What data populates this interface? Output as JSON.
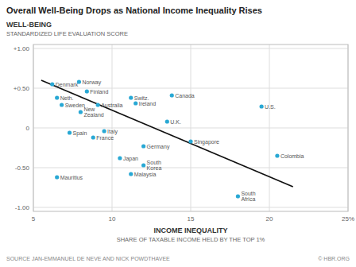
{
  "chart_data": {
    "type": "scatter",
    "title": "Overall Well-Being Drops as National Income Inequality Rises",
    "ylabel": "WELL-BEING",
    "ylabel_note": "STANDARDIZED LIFE EVALUATION SCORE",
    "xlabel": "INCOME INEQUALITY",
    "xlabel_note": "SHARE OF TAXABLE INCOME HELD BY THE TOP 1%",
    "source": "SOURCE  JAN-EMMANUEL DE NEVE AND NICK POWDTHAVEE",
    "credit": "© HBR.ORG",
    "xlim": [
      5,
      25
    ],
    "ylim": [
      -1.05,
      1.05
    ],
    "xticks": [
      5,
      10,
      15,
      20,
      {
        "value": 25,
        "label": "25%"
      }
    ],
    "yticks": [
      {
        "value": 1.0,
        "label": "+1.00"
      },
      {
        "value": 0.5,
        "label": "+0.50"
      },
      0,
      {
        "value": -0.5,
        "label": "-0.50"
      },
      {
        "value": -1.0,
        "label": "-1.00"
      }
    ],
    "grid": true,
    "series": [
      {
        "type": "scatter",
        "color": "#29a8d4",
        "x": [
          6.2,
          7.9,
          8.4,
          6.5,
          6.8,
          8.0,
          9.1,
          11.2,
          11.5,
          13.8,
          19.5,
          13.5,
          7.3,
          9.5,
          8.8,
          12.0,
          15.0,
          10.5,
          12.0,
          11.2,
          6.5,
          20.5,
          18.0
        ],
        "values": [
          0.55,
          0.58,
          0.46,
          0.38,
          0.29,
          0.2,
          0.29,
          0.38,
          0.31,
          0.41,
          0.27,
          0.08,
          -0.06,
          -0.04,
          -0.12,
          -0.23,
          -0.17,
          -0.38,
          -0.47,
          -0.58,
          -0.62,
          -0.35,
          -0.86
        ],
        "labels": [
          "Denmark",
          "Norway",
          "Finland",
          "Neth.",
          "Sweden",
          "New\nZealand",
          "Australia",
          "Switz.",
          "Ireland",
          "Canada",
          "U.S.",
          "U.K.",
          "Spain",
          "Italy",
          "France",
          "Germany",
          "Singapore",
          "Japan",
          "South\nKorea",
          "Malaysia",
          "Mauritius",
          "Colombia",
          "South\nAfrica"
        ]
      },
      {
        "type": "line",
        "color": "#111111",
        "x": [
          5.5,
          21.5
        ],
        "values": [
          0.6,
          -0.74
        ]
      }
    ]
  }
}
